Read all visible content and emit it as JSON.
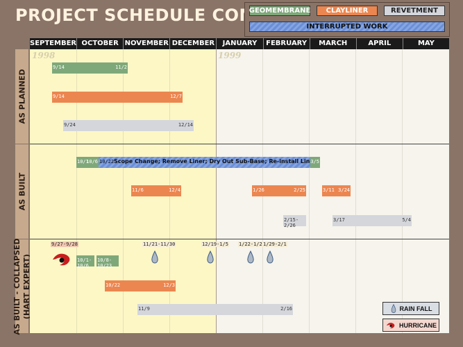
{
  "title": "PROJECT SCHEDULE COMPARISON",
  "legend": {
    "geomembrane": "GEOMEMBRANE",
    "clayliner": "CLAYLINER",
    "revetment": "REVETMENT",
    "interrupted": "INTERRUPTED WORK",
    "rainfall": "RAIN FALL",
    "hurricane": "HURRICANE"
  },
  "colors": {
    "geomembrane": "#7fa87a",
    "clayliner": "#ec8650",
    "revetment": "#d4d6dc",
    "interrupted": "#6b8fd6"
  },
  "years": [
    "1998",
    "1999"
  ],
  "months": [
    "SEPTEMBER",
    "OCTOBER",
    "NOVEMBER",
    "DECEMBER",
    "JANUARY",
    "FEBRUARY",
    "MARCH",
    "APRIL",
    "MAY"
  ],
  "row_labels": [
    "AS PLANNED",
    "AS BUILT",
    "AS BUILT - COLLAPSED\n(HART EXPERT)"
  ],
  "chart_data": {
    "type": "gantt",
    "title": "PROJECT SCHEDULE COMPARISON",
    "sections": [
      {
        "name": "AS PLANNED",
        "bars": [
          {
            "type": "geomembrane",
            "start": "9/14",
            "end": "11/2"
          },
          {
            "type": "clayliner",
            "start": "9/14",
            "end": "12/7"
          },
          {
            "type": "revetment",
            "start": "9/24",
            "end": "12/14"
          }
        ]
      },
      {
        "name": "AS BUILT",
        "bars": [
          {
            "type": "geomembrane",
            "start": "10/1",
            "end": "10/6"
          },
          {
            "type": "interrupted",
            "start": "10/22",
            "end": "3/5",
            "text": "Scope Change; Remove Liner; Dry Out Sub-Base; Re-install Liner"
          },
          {
            "type": "clayliner",
            "start": "11/6",
            "end": "12/4"
          },
          {
            "type": "clayliner",
            "start": "1/26",
            "end": "2/25"
          },
          {
            "type": "clayliner",
            "start": "3/11",
            "end": "3/24"
          },
          {
            "type": "revetment",
            "start": "2/15",
            "end": "2/26",
            "label": "2/15-2/26"
          },
          {
            "type": "revetment",
            "start": "3/17",
            "end": "5/4"
          }
        ]
      },
      {
        "name": "AS BUILT - COLLAPSED (HART EXPERT)",
        "bars": [
          {
            "type": "geomembrane",
            "start": "10/1",
            "end": "10/6",
            "label": "10/1-10/6"
          },
          {
            "type": "geomembrane",
            "start": "10/8",
            "end": "10/23",
            "label": "10/8-10/23"
          },
          {
            "type": "clayliner",
            "start": "10/22",
            "end": "12/3"
          },
          {
            "type": "revetment",
            "start": "11/9",
            "end": "2/16"
          }
        ]
      }
    ],
    "rainfall": [
      "11/21-11/30",
      "12/19-1/5",
      "1/22-1/25",
      "1/29-2/1"
    ],
    "hurricane": "9/27-9/28"
  }
}
